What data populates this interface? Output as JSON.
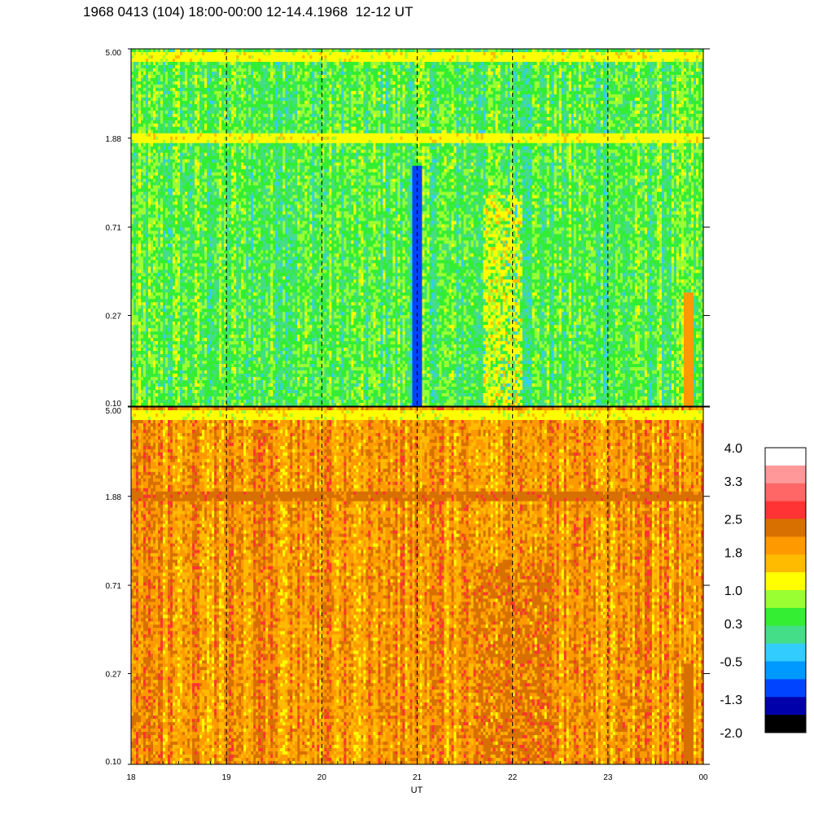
{
  "chart_data": {
    "type": "heatmap",
    "title": "1968 0413 (104) 18:00-00:00 12-14.4.1968  12-12 UT",
    "xlabel": "UT",
    "x_ticks": [
      "18",
      "19",
      "20",
      "21",
      "22",
      "23",
      "00"
    ],
    "x_range_hours": [
      18,
      24
    ],
    "panels": [
      {
        "name": "top",
        "y_ticks": [
          "5.00",
          "1.88",
          "0.71",
          "0.27",
          "0.10"
        ],
        "y_range": [
          0.1,
          5.0
        ],
        "y_scale": "log",
        "dominant_level": "0.3",
        "features": [
          {
            "label": "band",
            "y": 4.6,
            "level": "1.0"
          },
          {
            "label": "band",
            "y": 1.88,
            "level": "1.0"
          },
          {
            "label": "column",
            "x": 21.0,
            "y_min": 0.1,
            "y_max": 1.4,
            "level": "-1.3"
          },
          {
            "label": "column",
            "x": 23.85,
            "y_min": 0.1,
            "y_max": 0.35,
            "level": "1.8"
          },
          {
            "label": "patch",
            "x_min": 21.7,
            "x_max": 22.1,
            "y_min": 0.1,
            "y_max": 1.0,
            "level": "1.0"
          }
        ]
      },
      {
        "name": "bottom",
        "y_ticks": [
          "5.00",
          "1.88",
          "0.71",
          "0.27",
          "0.10"
        ],
        "y_range": [
          0.1,
          5.0
        ],
        "y_scale": "log",
        "dominant_level": "1.8",
        "features": [
          {
            "label": "band",
            "y": 4.6,
            "level": "1.0"
          },
          {
            "label": "band",
            "y": 1.88,
            "level": "2.5"
          },
          {
            "label": "column",
            "x": 23.85,
            "y_min": 0.1,
            "y_max": 0.3,
            "level": "2.5"
          },
          {
            "label": "patch",
            "x_min": 21.6,
            "x_max": 22.4,
            "y_min": 0.1,
            "y_max": 0.9,
            "level": "2.5"
          }
        ]
      }
    ],
    "vertical_dashed_lines_at": [
      19,
      20,
      21,
      22,
      23
    ],
    "colorbar": {
      "labels": [
        "4.0",
        "3.3",
        "2.5",
        "1.8",
        "1.0",
        "0.3",
        "-0.5",
        "-1.3",
        "-2.0"
      ],
      "colors": [
        "#ffffff",
        "#ff9999",
        "#ff6666",
        "#ff3333",
        "#d87000",
        "#ff9900",
        "#ffbb00",
        "#ffff00",
        "#99ff33",
        "#33ee33",
        "#44dd88",
        "#33ccff",
        "#0099ff",
        "#0044ff",
        "#0000aa",
        "#000000"
      ]
    }
  }
}
